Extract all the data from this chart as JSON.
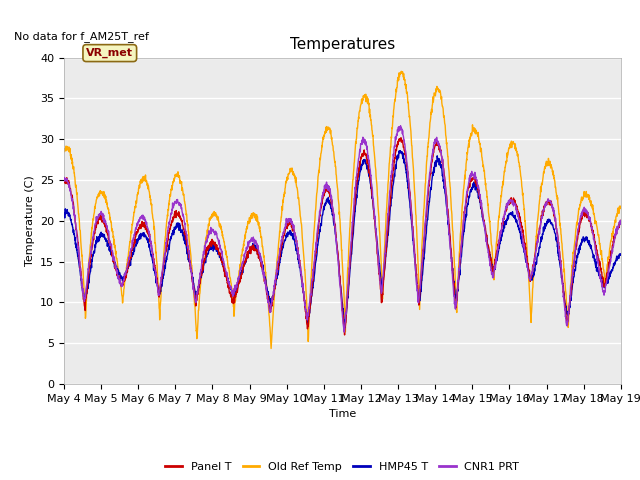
{
  "title": "Temperatures",
  "xlabel": "Time",
  "ylabel": "Temperature (C)",
  "ylim": [
    0,
    40
  ],
  "background_color": "#ebebeb",
  "no_data_text": "No data for f_AM25T_ref",
  "vr_met_label": "VR_met",
  "series": {
    "Panel T": {
      "color": "#cc0000",
      "lw": 1.0
    },
    "Old Ref Temp": {
      "color": "#ffaa00",
      "lw": 1.0
    },
    "HMP45 T": {
      "color": "#0000bb",
      "lw": 1.0
    },
    "CNR1 PRT": {
      "color": "#9933cc",
      "lw": 1.0
    }
  },
  "xtick_labels": [
    "May 4",
    "May 5",
    "May 6",
    "May 7",
    "May 8",
    "May 9",
    "May 10",
    "May 11",
    "May 12",
    "May 13",
    "May 14",
    "May 15",
    "May 16",
    "May 17",
    "May 18",
    "May 19"
  ],
  "num_days": 15,
  "points_per_day": 144,
  "day_peaks_orange": [
    29,
    19,
    29,
    23,
    19,
    22,
    29,
    33,
    37,
    39,
    34,
    29,
    30,
    25,
    22
  ],
  "day_mins_orange": [
    7.5,
    10,
    8,
    5,
    9,
    4,
    5,
    6,
    10,
    9,
    8,
    13,
    7,
    6,
    12
  ],
  "day_peaks_red": [
    25,
    16,
    22,
    20,
    15,
    18,
    21,
    26,
    30,
    30,
    29,
    22,
    23,
    22,
    20
  ],
  "day_mins_red": [
    9,
    12,
    11,
    10,
    10,
    9,
    7,
    6,
    10,
    10,
    9,
    14,
    13,
    7,
    12
  ],
  "day_peaks_blue": [
    21,
    16,
    20,
    19,
    15,
    18,
    19,
    25,
    29,
    28,
    27,
    22,
    20,
    20,
    16
  ],
  "day_mins_blue": [
    10,
    13,
    11,
    11,
    11,
    10,
    8,
    7,
    12,
    10,
    10,
    14,
    13,
    8,
    12
  ],
  "day_peaks_purple": [
    25,
    17,
    23,
    22,
    16,
    19,
    21,
    27,
    32,
    31,
    29,
    23,
    22,
    23,
    20
  ],
  "day_mins_purple": [
    10,
    12,
    11,
    10,
    11,
    9,
    8,
    6,
    11,
    10,
    9,
    13,
    13,
    7,
    11
  ]
}
